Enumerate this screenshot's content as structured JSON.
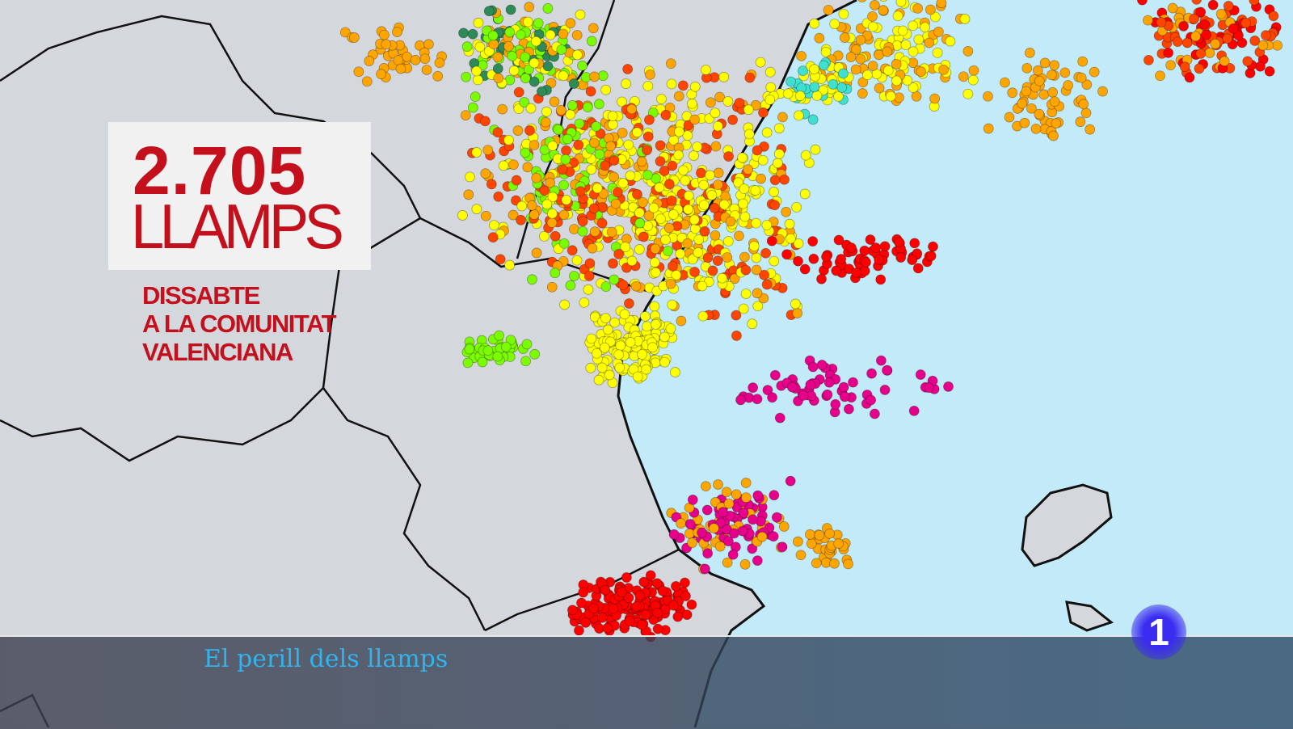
{
  "infographic": {
    "count": "2.705",
    "unit": "LLAMPS",
    "subtitle_lines": [
      "DISSABTE",
      "A LA COMUNITAT",
      "VALENCIANA"
    ]
  },
  "lower_third": {
    "title": "El perill dels llamps"
  },
  "channel_logo": {
    "text": "1"
  },
  "map": {
    "land_color": "#d4d7db",
    "sea_color": "#bfe9f8",
    "border_color": "#111111",
    "strike_colors": [
      "#ffff00",
      "#ffa500",
      "#ff4500",
      "#ff0000",
      "#e6008a",
      "#7cfc00",
      "#2e8b57",
      "#40e0d0"
    ]
  }
}
